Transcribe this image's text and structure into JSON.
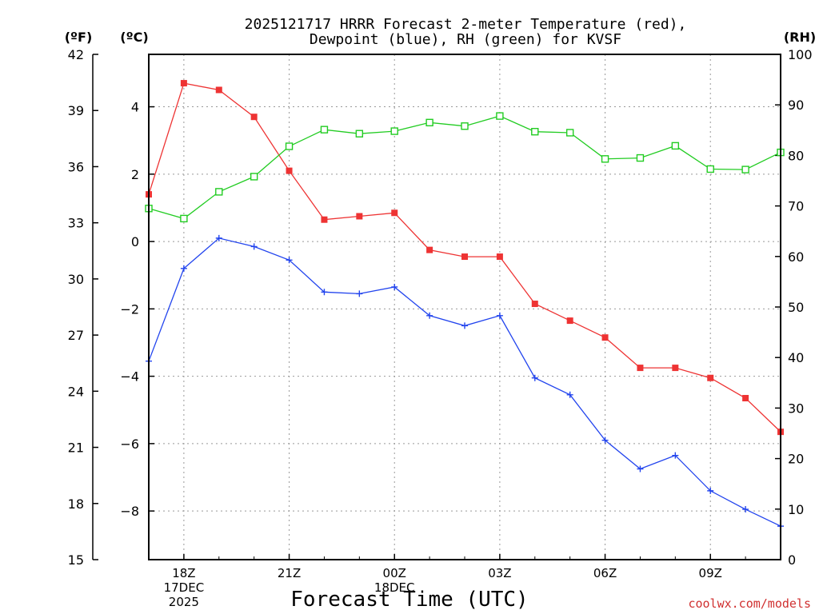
{
  "chart_data": {
    "type": "line",
    "title_line1": "2025121717 HRRR Forecast 2-meter Temperature (red),",
    "title_line2": "Dewpoint (blue), RH (green) for KVSF",
    "xlabel": "Forecast Time (UTC)",
    "credit": "coolwx.com/models",
    "left_outer_axis": {
      "unit": "(ºF)",
      "ticks": [
        15,
        18,
        21,
        24,
        27,
        30,
        33,
        36,
        39,
        42
      ],
      "range": [
        15,
        42
      ]
    },
    "left_inner_axis": {
      "unit": "(ºC)",
      "ticks": [
        -8,
        -6,
        -4,
        -2,
        0,
        2,
        4
      ],
      "range": [
        -9.444,
        5.556
      ]
    },
    "right_axis": {
      "unit": "(RH)",
      "ticks": [
        0,
        10,
        20,
        30,
        40,
        50,
        60,
        70,
        80,
        90,
        100
      ],
      "range": [
        0,
        100
      ]
    },
    "x_range_hours": [
      17,
      35
    ],
    "x_ticks": [
      {
        "hour": 18,
        "lines": [
          "18Z",
          "17DEC",
          "2025"
        ]
      },
      {
        "hour": 21,
        "lines": [
          "21Z"
        ]
      },
      {
        "hour": 24,
        "lines": [
          "00Z",
          "18DEC"
        ]
      },
      {
        "hour": 27,
        "lines": [
          "03Z"
        ]
      },
      {
        "hour": 30,
        "lines": [
          "06Z"
        ]
      },
      {
        "hour": 33,
        "lines": [
          "09Z"
        ]
      }
    ],
    "hours": [
      17,
      18,
      19,
      20,
      21,
      22,
      23,
      24,
      25,
      26,
      27,
      28,
      29,
      30,
      31,
      32,
      33,
      34,
      35
    ],
    "series": [
      {
        "name": "Temperature",
        "unit": "C",
        "color": "#ee3333",
        "marker": "filled-square",
        "values": [
          1.4,
          4.7,
          4.5,
          3.7,
          2.1,
          0.65,
          0.75,
          0.85,
          -0.25,
          -0.45,
          -0.45,
          -1.85,
          -2.35,
          -2.85,
          -3.75,
          -3.75,
          -4.05,
          -4.65,
          -5.65
        ]
      },
      {
        "name": "Dewpoint",
        "unit": "C",
        "color": "#2244ee",
        "marker": "plus",
        "values": [
          -3.55,
          -0.8,
          0.1,
          -0.15,
          -0.55,
          -1.5,
          -1.55,
          -1.35,
          -2.2,
          -2.5,
          -2.2,
          -4.05,
          -4.55,
          -5.9,
          -6.75,
          -6.35,
          -7.4,
          -7.95,
          -8.45
        ]
      },
      {
        "name": "RH",
        "unit": "%",
        "color": "#22cc22",
        "marker": "open-square",
        "values": [
          69.5,
          67.5,
          72.8,
          75.8,
          81.8,
          85.1,
          84.3,
          84.8,
          86.5,
          85.8,
          87.8,
          84.7,
          84.5,
          79.3,
          79.5,
          81.9,
          77.3,
          77.2,
          80.6
        ]
      }
    ]
  }
}
